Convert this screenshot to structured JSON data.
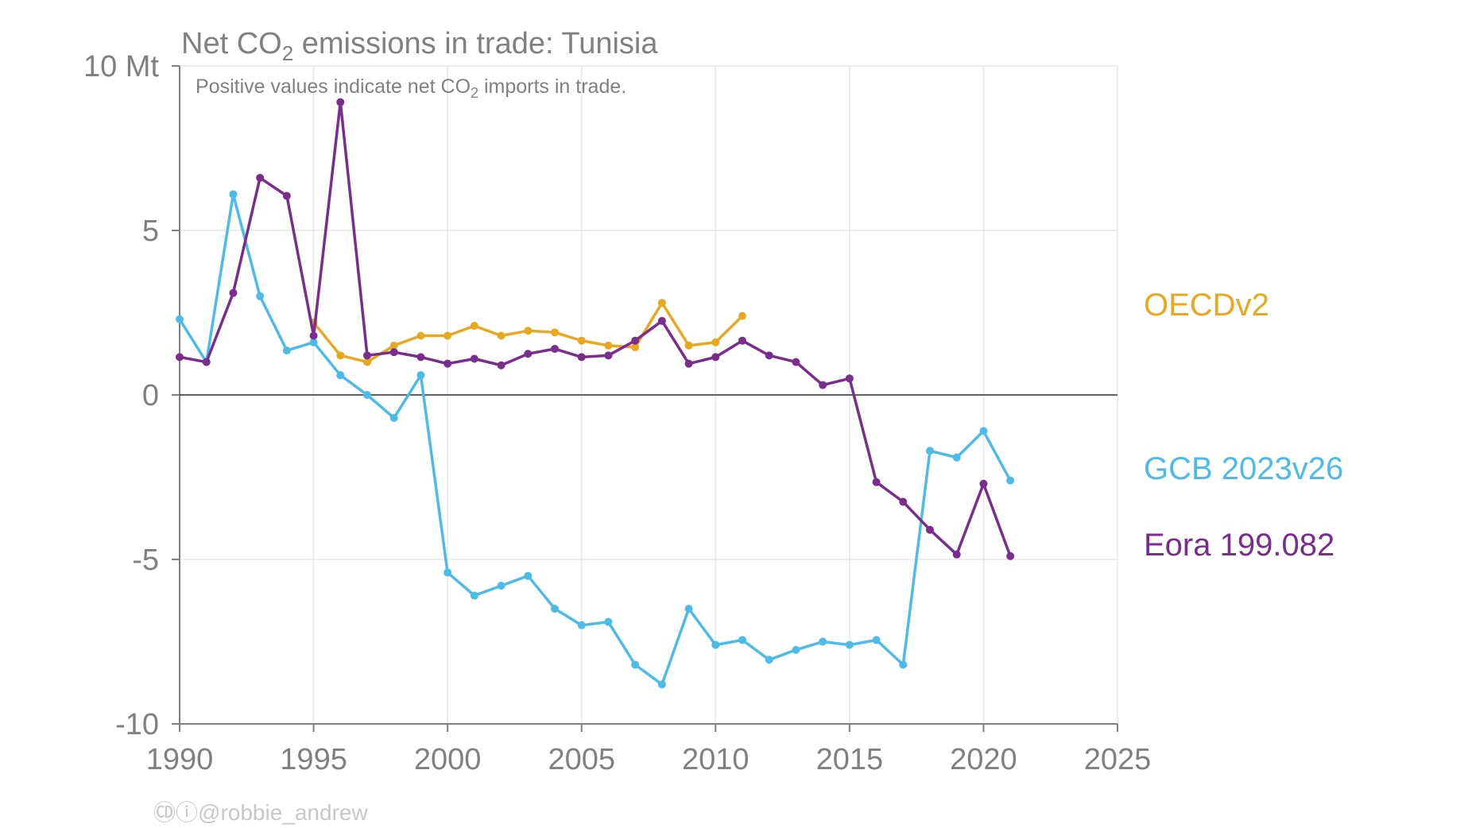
{
  "chart_data": {
    "type": "line",
    "title_parts": [
      "Net CO",
      "2",
      " emissions in trade: Tunisia"
    ],
    "subtitle_parts": [
      "Positive values indicate net CO",
      "2",
      " imports in trade."
    ],
    "xlabel": "",
    "ylabel": "",
    "xlim": [
      1990,
      2025
    ],
    "ylim": [
      -10,
      10
    ],
    "x_ticks": [
      1990,
      1995,
      2000,
      2005,
      2010,
      2015,
      2020,
      2025
    ],
    "x_tick_labels": [
      "1990",
      "1995",
      "2000",
      "2005",
      "2010",
      "2015",
      "2020",
      "2025"
    ],
    "y_ticks": [
      10,
      5,
      0,
      -5,
      -10
    ],
    "y_tick_labels": [
      "10 Mt",
      "5",
      "0",
      "-5",
      "-10"
    ],
    "grid": true,
    "zero_line": true,
    "legend_placement": "right, at series ends",
    "series": [
      {
        "name": "OECDv2",
        "color": "#E8A820",
        "x": [
          1995,
          1996,
          1997,
          1998,
          1999,
          2000,
          2001,
          2002,
          2003,
          2004,
          2005,
          2006,
          2007,
          2008,
          2009,
          2010,
          2011
        ],
        "values": [
          2.2,
          1.2,
          1.0,
          1.5,
          1.8,
          1.8,
          2.1,
          1.8,
          1.95,
          1.9,
          1.65,
          1.5,
          1.45,
          2.8,
          1.5,
          1.6,
          2.4
        ]
      },
      {
        "name": "GCB 2023v26",
        "color": "#4DBBE8",
        "x": [
          1990,
          1991,
          1992,
          1993,
          1994,
          1995,
          1996,
          1997,
          1998,
          1999,
          2000,
          2001,
          2002,
          2003,
          2004,
          2005,
          2006,
          2007,
          2008,
          2009,
          2010,
          2011,
          2012,
          2013,
          2014,
          2015,
          2016,
          2017,
          2018,
          2019,
          2020,
          2021
        ],
        "values": [
          2.3,
          1.0,
          6.1,
          3.0,
          1.35,
          1.6,
          0.6,
          0.0,
          -0.7,
          0.6,
          -5.4,
          -6.1,
          -5.8,
          -5.5,
          -6.5,
          -7.0,
          -6.9,
          -8.2,
          -8.8,
          -6.5,
          -7.6,
          -7.45,
          -8.05,
          -7.75,
          -7.5,
          -7.6,
          -7.45,
          -8.2,
          -1.7,
          -1.9,
          -1.1,
          -2.6
        ]
      },
      {
        "name": "Eora 199.082",
        "color": "#7B2D8E",
        "x": [
          1990,
          1991,
          1992,
          1993,
          1994,
          1995,
          1996,
          1997,
          1998,
          1999,
          2000,
          2001,
          2002,
          2003,
          2004,
          2005,
          2006,
          2007,
          2008,
          2009,
          2010,
          2011,
          2012,
          2013,
          2014,
          2015,
          2016,
          2017,
          2018,
          2019,
          2020,
          2021
        ],
        "values": [
          1.15,
          1.0,
          3.1,
          6.6,
          6.05,
          1.8,
          8.9,
          1.2,
          1.3,
          1.15,
          0.95,
          1.1,
          0.9,
          1.25,
          1.4,
          1.15,
          1.2,
          1.65,
          2.25,
          0.95,
          1.15,
          1.65,
          1.2,
          1.0,
          0.3,
          0.5,
          -2.65,
          -3.25,
          -4.1,
          -4.85,
          -2.7,
          -4.9
        ]
      }
    ]
  },
  "footer": {
    "cc_icons": "🄭ⓘ",
    "credit": "@robbie_andrew"
  },
  "colors": {
    "axis_text": "#808080",
    "grid": "#E8E8E8",
    "axis": "#808080",
    "zero_line": "#333333"
  }
}
